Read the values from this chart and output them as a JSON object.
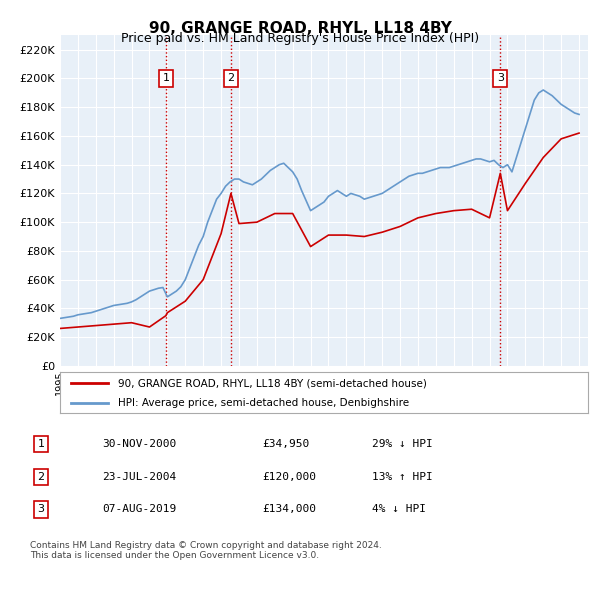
{
  "title": "90, GRANGE ROAD, RHYL, LL18 4BY",
  "subtitle": "Price paid vs. HM Land Registry's House Price Index (HPI)",
  "background_color": "#ffffff",
  "plot_bg_color": "#e8f0f8",
  "grid_color": "#ffffff",
  "ylabel": "",
  "ylim": [
    0,
    230000
  ],
  "yticks": [
    0,
    20000,
    40000,
    60000,
    80000,
    100000,
    120000,
    140000,
    160000,
    180000,
    200000,
    220000
  ],
  "sale_color": "#cc0000",
  "hpi_color": "#6699cc",
  "sale_label": "90, GRANGE ROAD, RHYL, LL18 4BY (semi-detached house)",
  "hpi_label": "HPI: Average price, semi-detached house, Denbighshire",
  "transactions": [
    {
      "num": 1,
      "date": "30-NOV-2000",
      "price": 34950,
      "pct": "29%",
      "dir": "↓",
      "x_year": 2000.92
    },
    {
      "num": 2,
      "date": "23-JUL-2004",
      "price": 120000,
      "pct": "13%",
      "dir": "↑",
      "x_year": 2004.55
    },
    {
      "num": 3,
      "date": "07-AUG-2019",
      "price": 134000,
      "pct": "4%",
      "dir": "↓",
      "x_year": 2019.6
    }
  ],
  "footer": "Contains HM Land Registry data © Crown copyright and database right 2024.\nThis data is licensed under the Open Government Licence v3.0.",
  "hpi_data": {
    "years": [
      1995.0,
      1995.25,
      1995.5,
      1995.75,
      1996.0,
      1996.25,
      1996.5,
      1996.75,
      1997.0,
      1997.25,
      1997.5,
      1997.75,
      1998.0,
      1998.25,
      1998.5,
      1998.75,
      1999.0,
      1999.25,
      1999.5,
      1999.75,
      2000.0,
      2000.25,
      2000.5,
      2000.75,
      2001.0,
      2001.25,
      2001.5,
      2001.75,
      2002.0,
      2002.25,
      2002.5,
      2002.75,
      2003.0,
      2003.25,
      2003.5,
      2003.75,
      2004.0,
      2004.25,
      2004.5,
      2004.75,
      2005.0,
      2005.25,
      2005.5,
      2005.75,
      2006.0,
      2006.25,
      2006.5,
      2006.75,
      2007.0,
      2007.25,
      2007.5,
      2007.75,
      2008.0,
      2008.25,
      2008.5,
      2008.75,
      2009.0,
      2009.25,
      2009.5,
      2009.75,
      2010.0,
      2010.25,
      2010.5,
      2010.75,
      2011.0,
      2011.25,
      2011.5,
      2011.75,
      2012.0,
      2012.25,
      2012.5,
      2012.75,
      2013.0,
      2013.25,
      2013.5,
      2013.75,
      2014.0,
      2014.25,
      2014.5,
      2014.75,
      2015.0,
      2015.25,
      2015.5,
      2015.75,
      2016.0,
      2016.25,
      2016.5,
      2016.75,
      2017.0,
      2017.25,
      2017.5,
      2017.75,
      2018.0,
      2018.25,
      2018.5,
      2018.75,
      2019.0,
      2019.25,
      2019.5,
      2019.75,
      2020.0,
      2020.25,
      2020.5,
      2020.75,
      2021.0,
      2021.25,
      2021.5,
      2021.75,
      2022.0,
      2022.25,
      2022.5,
      2022.75,
      2023.0,
      2023.25,
      2023.5,
      2023.75,
      2024.0
    ],
    "values": [
      33000,
      33500,
      34000,
      34500,
      35500,
      36000,
      36500,
      37000,
      38000,
      39000,
      40000,
      41000,
      42000,
      42500,
      43000,
      43500,
      44500,
      46000,
      48000,
      50000,
      52000,
      53000,
      54000,
      54500,
      48000,
      50000,
      52000,
      55000,
      60000,
      68000,
      76000,
      84000,
      90000,
      100000,
      108000,
      116000,
      120000,
      125000,
      128000,
      130000,
      130000,
      128000,
      127000,
      126000,
      128000,
      130000,
      133000,
      136000,
      138000,
      140000,
      141000,
      138000,
      135000,
      130000,
      122000,
      115000,
      108000,
      110000,
      112000,
      114000,
      118000,
      120000,
      122000,
      120000,
      118000,
      120000,
      119000,
      118000,
      116000,
      117000,
      118000,
      119000,
      120000,
      122000,
      124000,
      126000,
      128000,
      130000,
      132000,
      133000,
      134000,
      134000,
      135000,
      136000,
      137000,
      138000,
      138000,
      138000,
      139000,
      140000,
      141000,
      142000,
      143000,
      144000,
      144000,
      143000,
      142000,
      143000,
      140000,
      138000,
      140000,
      135000,
      145000,
      155000,
      165000,
      175000,
      185000,
      190000,
      192000,
      190000,
      188000,
      185000,
      182000,
      180000,
      178000,
      176000,
      175000
    ]
  },
  "sale_line_data": {
    "years": [
      1995.0,
      1996.0,
      1997.0,
      1998.0,
      1999.0,
      2000.0,
      2000.92,
      2001.0,
      2002.0,
      2003.0,
      2004.0,
      2004.55,
      2005.0,
      2006.0,
      2007.0,
      2008.0,
      2009.0,
      2010.0,
      2011.0,
      2012.0,
      2013.0,
      2014.0,
      2015.0,
      2016.0,
      2017.0,
      2018.0,
      2019.0,
      2019.6,
      2020.0,
      2021.0,
      2022.0,
      2023.0,
      2024.0
    ],
    "values": [
      26000,
      27000,
      28000,
      29000,
      30000,
      27000,
      34950,
      37000,
      45000,
      60000,
      92000,
      120000,
      99000,
      100000,
      106000,
      106000,
      83000,
      91000,
      91000,
      90000,
      93000,
      97000,
      103000,
      106000,
      108000,
      109000,
      103000,
      134000,
      108000,
      127000,
      145000,
      158000,
      162000
    ]
  },
  "vline_color": "#cc0000",
  "vline_style": ":",
  "marker_box_color": "#cc0000",
  "xlim_start": 1995.0,
  "xlim_end": 2024.5
}
